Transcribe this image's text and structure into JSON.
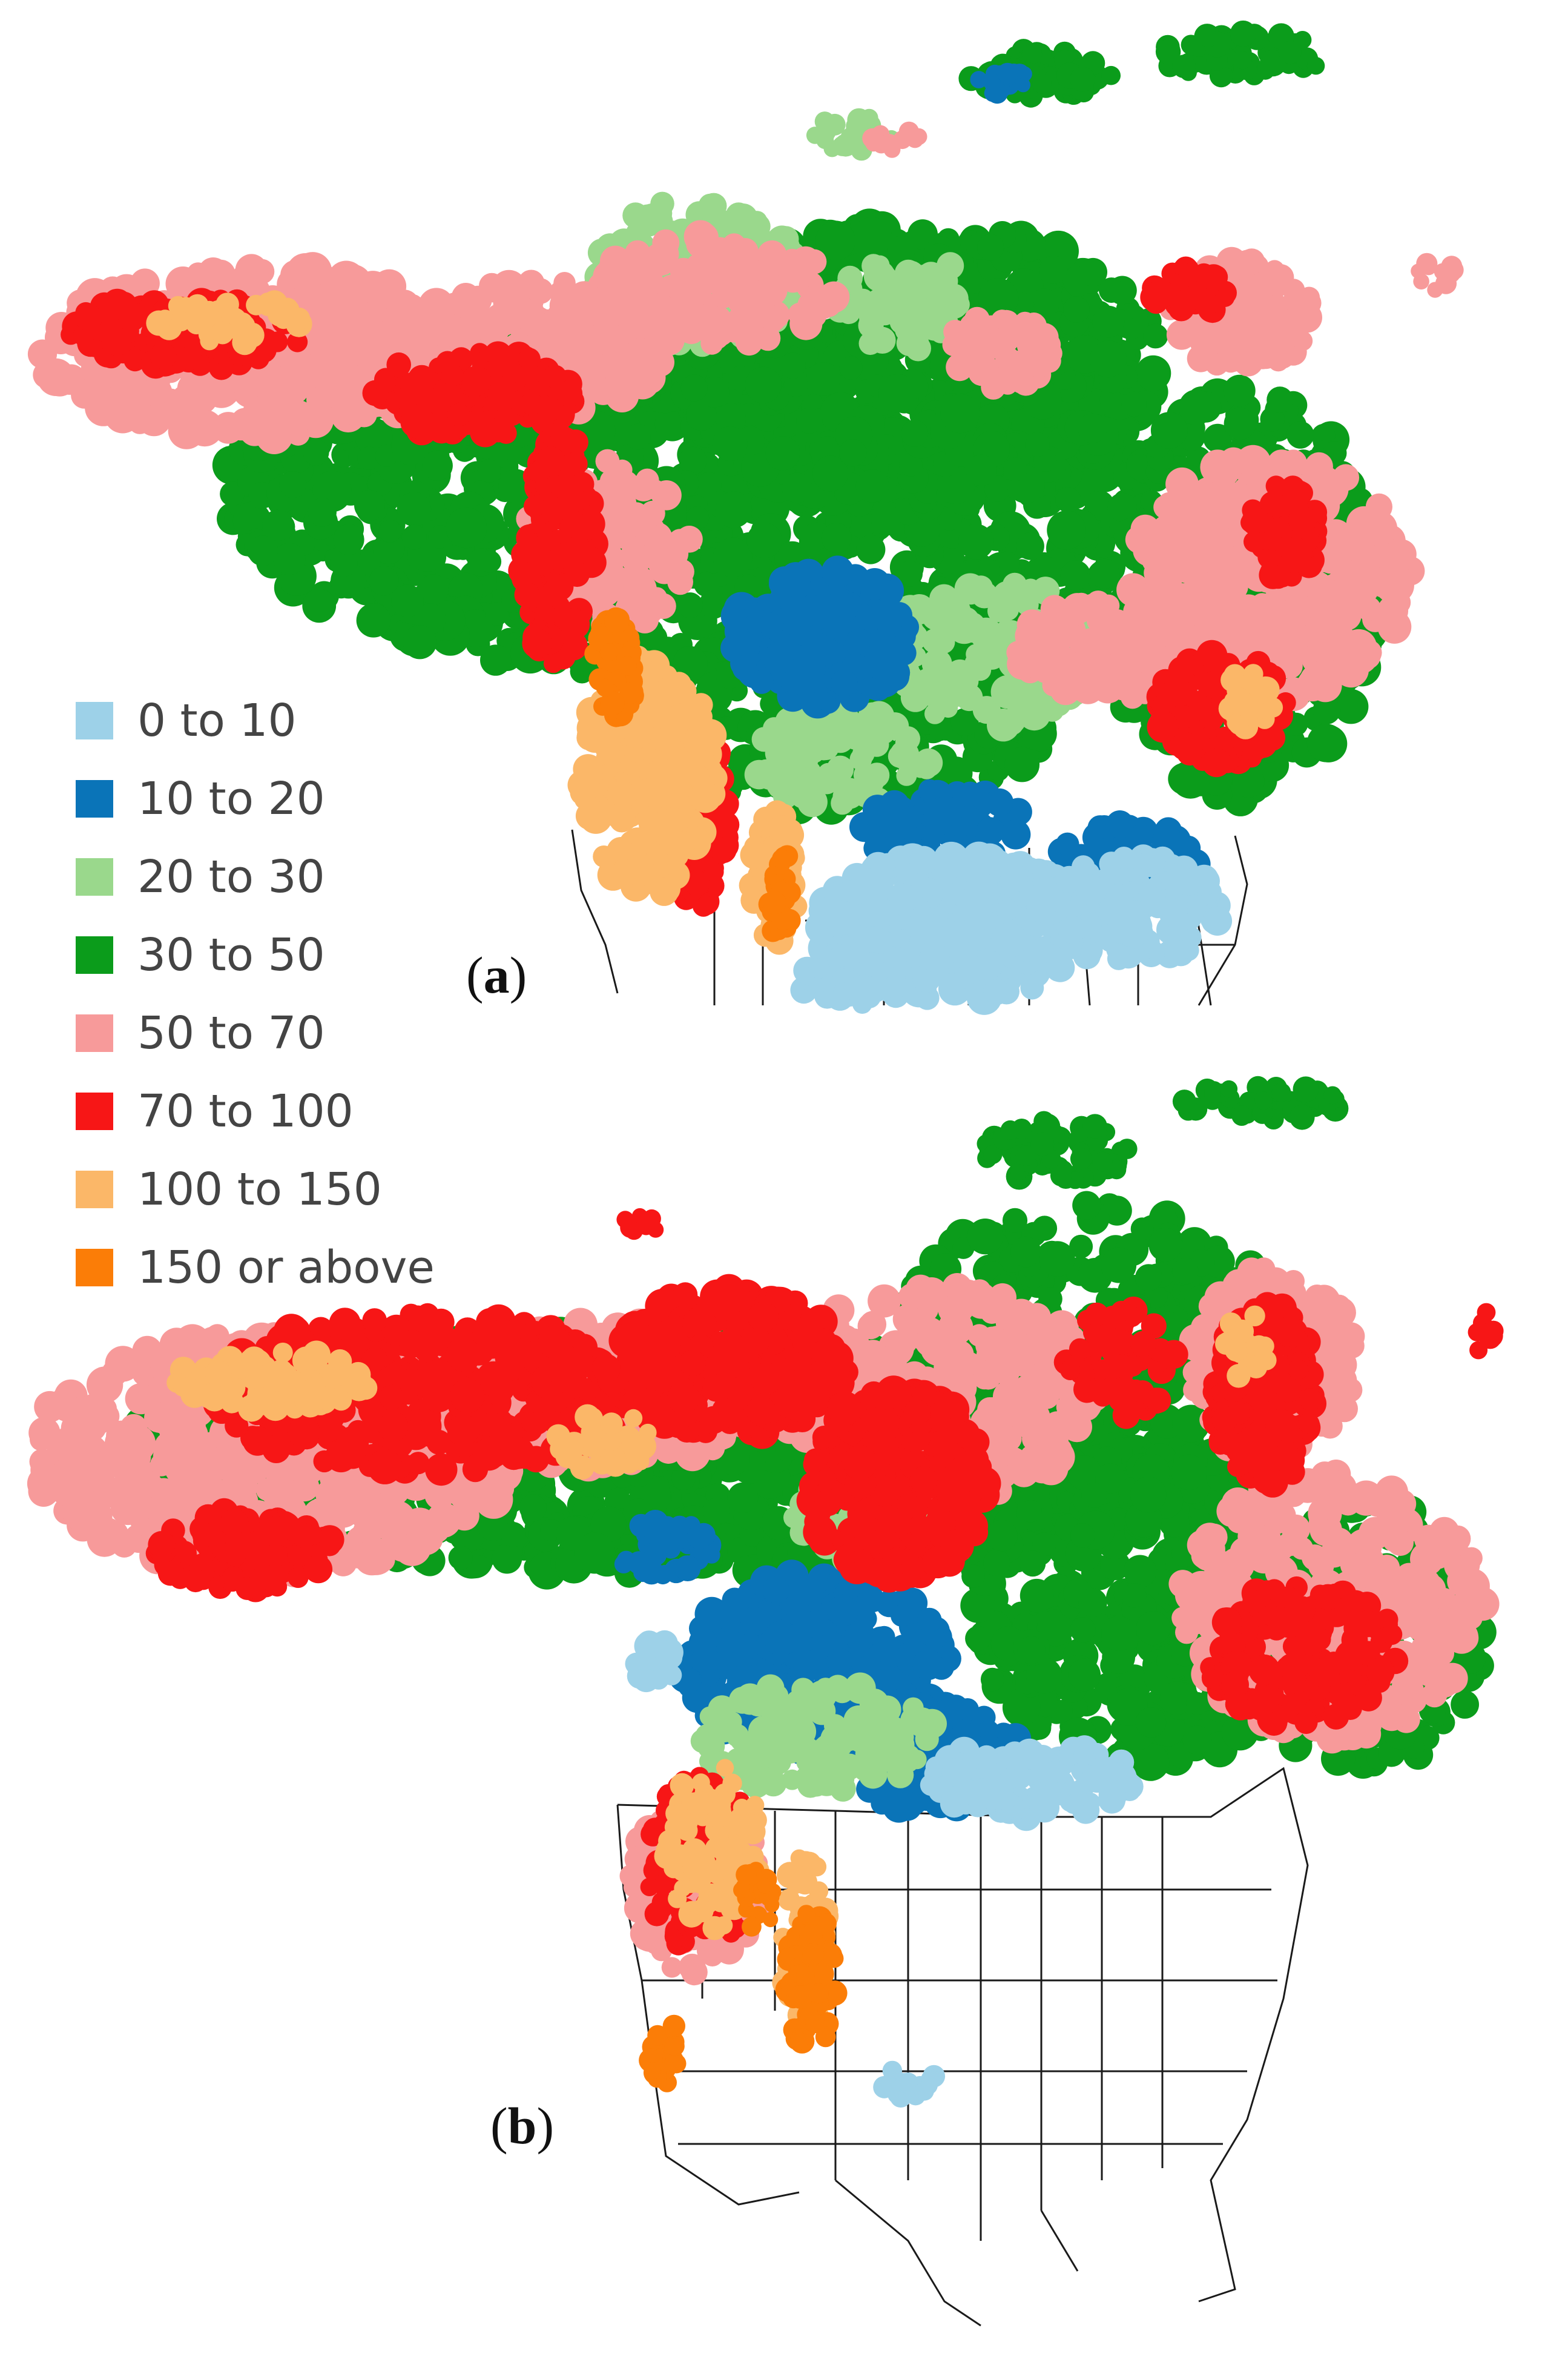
{
  "figure": {
    "panels": [
      {
        "id": "a",
        "label_open": "(",
        "label_letter": "a",
        "label_close": ")"
      },
      {
        "id": "b",
        "label_open": "(",
        "label_letter": "b",
        "label_close": ")"
      }
    ]
  },
  "legend": {
    "items": [
      {
        "label": "0 to 10",
        "color": "#9dd1e8"
      },
      {
        "label": "10 to 20",
        "color": "#0a74b8"
      },
      {
        "label": "20 to 30",
        "color": "#9ad88c"
      },
      {
        "label": "30 to 50",
        "color": "#0b9c1b"
      },
      {
        "label": "50 to 70",
        "color": "#f79a9a"
      },
      {
        "label": "70 to 100",
        "color": "#f71616"
      },
      {
        "label": "100 to 150",
        "color": "#fbb768"
      },
      {
        "label": "150 or above",
        "color": "#fb7d07"
      }
    ]
  },
  "map_colors": {
    "boundary": "#1a1a1a",
    "background": "#ffffff"
  }
}
